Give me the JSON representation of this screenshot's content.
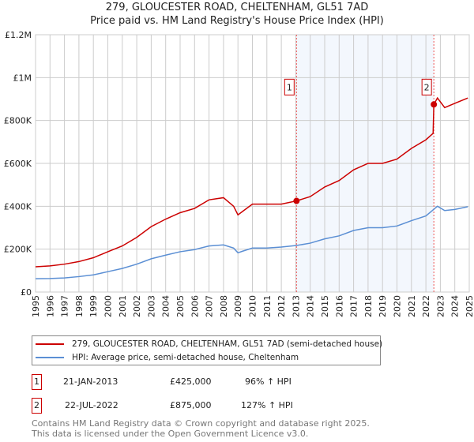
{
  "chart_data": {
    "type": "line",
    "title": "279, GLOUCESTER ROAD, CHELTENHAM, GL51 7AD",
    "subtitle": "Price paid vs. HM Land Registry's House Price Index (HPI)",
    "xlim": [
      1995,
      2025
    ],
    "ylim": [
      0,
      1200000
    ],
    "yticks": [
      {
        "v": 0,
        "l": "£0"
      },
      {
        "v": 200000,
        "l": "£200K"
      },
      {
        "v": 400000,
        "l": "£400K"
      },
      {
        "v": 600000,
        "l": "£600K"
      },
      {
        "v": 800000,
        "l": "£800K"
      },
      {
        "v": 1000000,
        "l": "£1M"
      },
      {
        "v": 1200000,
        "l": "£1.2M"
      }
    ],
    "xticks": [
      "1995",
      "1996",
      "1997",
      "1998",
      "1999",
      "2000",
      "2001",
      "2002",
      "2003",
      "2004",
      "2005",
      "2006",
      "2007",
      "2008",
      "2009",
      "2010",
      "2011",
      "2012",
      "2013",
      "2014",
      "2015",
      "2016",
      "2017",
      "2018",
      "2019",
      "2020",
      "2021",
      "2022",
      "2023",
      "2024",
      "2025"
    ],
    "grid": true,
    "series": [
      {
        "name": "279, GLOUCESTER ROAD, CHELTENHAM, GL51 7AD (semi-detached house)",
        "color": "#cc0000",
        "x": [
          1995,
          1996,
          1997,
          1998,
          1999,
          2000,
          2001,
          2002,
          2003,
          2004,
          2005,
          2006,
          2007,
          2008,
          2008.7,
          2009,
          2009.3,
          2010,
          2011,
          2012,
          2013.05,
          2014,
          2015,
          2016,
          2017,
          2018,
          2019,
          2020,
          2021,
          2022,
          2022.5,
          2022.55,
          2022.8,
          2023.3,
          2024,
          2024.9
        ],
        "y": [
          118000,
          122000,
          130000,
          142000,
          160000,
          188000,
          215000,
          255000,
          305000,
          340000,
          370000,
          390000,
          430000,
          440000,
          400000,
          360000,
          375000,
          410000,
          410000,
          410000,
          425000,
          445000,
          490000,
          520000,
          570000,
          600000,
          600000,
          620000,
          670000,
          710000,
          740000,
          875000,
          905000,
          860000,
          880000,
          905000
        ]
      },
      {
        "name": "HPI: Average price, semi-detached house, Cheltenham",
        "color": "#5b8fd4",
        "x": [
          1995,
          1996,
          1997,
          1998,
          1999,
          2000,
          2001,
          2002,
          2003,
          2004,
          2005,
          2006,
          2007,
          2008,
          2008.7,
          2009,
          2009.3,
          2010,
          2011,
          2012,
          2013.05,
          2014,
          2015,
          2016,
          2017,
          2018,
          2019,
          2020,
          2021,
          2022,
          2022.8,
          2023.3,
          2024,
          2024.9
        ],
        "y": [
          62000,
          63000,
          66000,
          72000,
          80000,
          95000,
          110000,
          130000,
          155000,
          172000,
          188000,
          198000,
          215000,
          220000,
          205000,
          183000,
          190000,
          205000,
          205000,
          210000,
          217000,
          228000,
          248000,
          262000,
          287000,
          300000,
          300000,
          308000,
          333000,
          355000,
          400000,
          380000,
          385000,
          398000
        ]
      }
    ],
    "sales": [
      {
        "n": "1",
        "x": 2013.05,
        "y": 425000
      },
      {
        "n": "2",
        "x": 2022.55,
        "y": 875000
      }
    ],
    "shade": [
      2013.05,
      2022.55
    ],
    "legend_position": "below"
  },
  "table": [
    {
      "n": "1",
      "date": "21-JAN-2013",
      "price": "£425,000",
      "hpi": "96% ↑ HPI"
    },
    {
      "n": "2",
      "date": "22-JUL-2022",
      "price": "£875,000",
      "hpi": "127% ↑ HPI"
    }
  ],
  "footer": [
    "Contains HM Land Registry data © Crown copyright and database right 2025.",
    "This data is licensed under the Open Government Licence v3.0."
  ]
}
